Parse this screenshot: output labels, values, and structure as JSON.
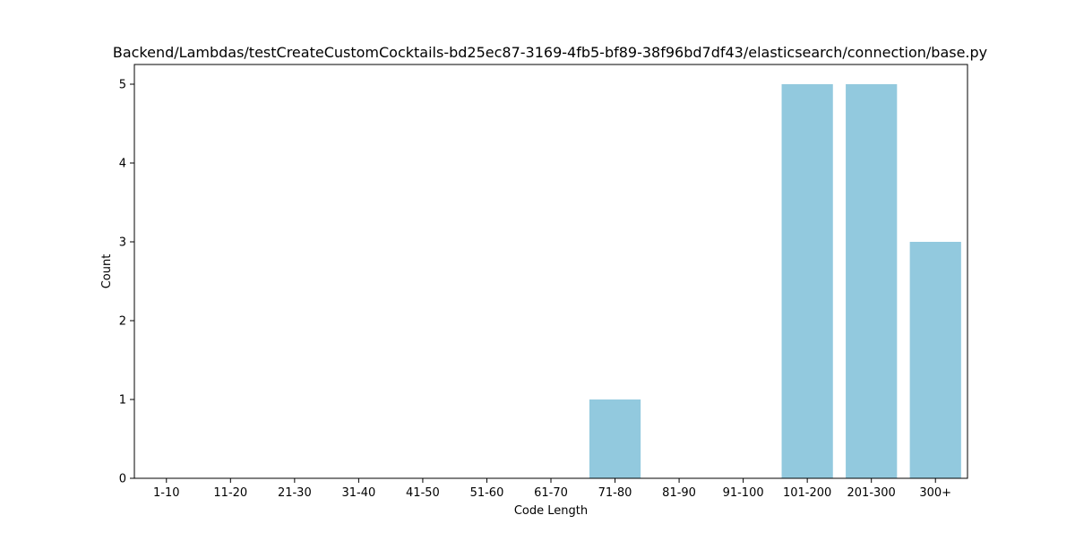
{
  "chart_data": {
    "type": "bar",
    "title": "Backend/Lambdas/testCreateCustomCocktails-bd25ec87-3169-4fb5-bf89-38f96bd7df43/elasticsearch/connection/base.py",
    "xlabel": "Code Length",
    "ylabel": "Count",
    "categories": [
      "1-10",
      "11-20",
      "21-30",
      "31-40",
      "41-50",
      "51-60",
      "61-70",
      "71-80",
      "81-90",
      "91-100",
      "101-200",
      "201-300",
      "300+"
    ],
    "values": [
      0,
      0,
      0,
      0,
      0,
      0,
      0,
      1,
      0,
      0,
      5,
      5,
      3
    ],
    "ylim": [
      0,
      5.25
    ],
    "yticks": [
      0,
      1,
      2,
      3,
      4,
      5
    ],
    "bar_color": "#92c9de",
    "grid": false,
    "legend": "none"
  }
}
